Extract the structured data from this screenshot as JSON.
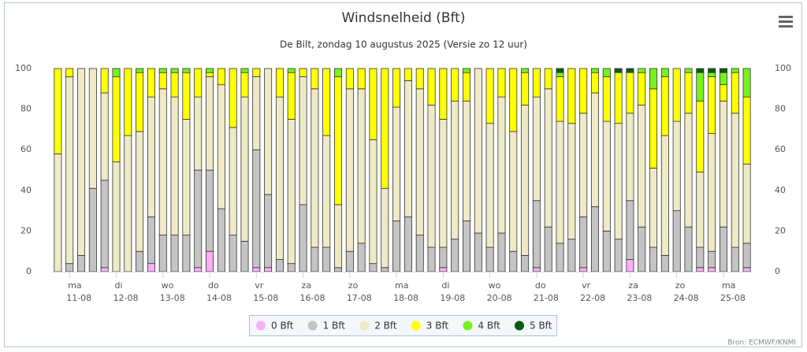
{
  "chart_data": {
    "type": "stacked_bar",
    "title": "Windsnelheid (Bft)",
    "subtitle": "De Bilt, zondag 10 augustus 2025 (Versie zo 12 uur)",
    "source": "Bron: ECMWF/KNMI",
    "categories": [
      null,
      [
        "ma",
        "11-08"
      ],
      null,
      null,
      null,
      [
        "di",
        "12-08"
      ],
      null,
      null,
      null,
      [
        "wo",
        "13-08"
      ],
      null,
      null,
      null,
      [
        "do",
        "14-08"
      ],
      null,
      null,
      null,
      [
        "vr",
        "15-08"
      ],
      null,
      null,
      null,
      [
        "za",
        "16-08"
      ],
      null,
      null,
      null,
      [
        "zo",
        "17-08"
      ],
      null,
      null,
      null,
      [
        "ma",
        "18-08"
      ],
      null,
      null,
      null,
      [
        "di",
        "19-08"
      ],
      null,
      null,
      null,
      [
        "wo",
        "20-08"
      ],
      null,
      null,
      null,
      [
        "do",
        "21-08"
      ],
      null,
      null,
      null,
      [
        "vr",
        "22-08"
      ],
      null,
      null,
      null,
      [
        "za",
        "23-08"
      ],
      null,
      null,
      null,
      [
        "zo",
        "24-08"
      ],
      null,
      null,
      null,
      [
        "ma",
        "25-08"
      ],
      null,
      null
    ],
    "series": [
      {
        "name": "0 Bft",
        "color": "#f9b0f5",
        "values": [
          0,
          0,
          0,
          0,
          2,
          0,
          0,
          0,
          4,
          0,
          0,
          0,
          2,
          10,
          0,
          0,
          0,
          2,
          2,
          0,
          0,
          0,
          0,
          0,
          0,
          0,
          0,
          0,
          0,
          0,
          0,
          0,
          0,
          2,
          0,
          0,
          0,
          0,
          0,
          0,
          0,
          2,
          0,
          0,
          0,
          2,
          0,
          0,
          0,
          6,
          0,
          0,
          0,
          0,
          0,
          2,
          2,
          0,
          0,
          2
        ]
      },
      {
        "name": "1 Bft",
        "color": "#c4c4c4",
        "values": [
          0,
          4,
          8,
          41,
          43,
          0,
          0,
          10,
          23,
          18,
          18,
          18,
          48,
          40,
          31,
          18,
          15,
          58,
          36,
          6,
          4,
          33,
          12,
          12,
          2,
          10,
          14,
          4,
          2,
          25,
          27,
          18,
          12,
          10,
          16,
          25,
          19,
          12,
          19,
          10,
          8,
          33,
          22,
          14,
          16,
          25,
          32,
          20,
          16,
          29,
          22,
          12,
          8,
          30,
          22,
          10,
          8,
          22,
          12,
          12
        ]
      },
      {
        "name": "2 Bft",
        "color": "#eeeac6",
        "values": [
          58,
          92,
          92,
          59,
          43,
          54,
          67,
          59,
          59,
          72,
          68,
          57,
          36,
          46,
          61,
          53,
          71,
          36,
          62,
          80,
          71,
          63,
          78,
          55,
          31,
          80,
          76,
          61,
          39,
          56,
          67,
          72,
          70,
          63,
          68,
          59,
          81,
          61,
          67,
          59,
          74,
          51,
          68,
          60,
          57,
          51,
          56,
          54,
          57,
          43,
          60,
          39,
          59,
          44,
          56,
          37,
          58,
          62,
          66,
          39
        ]
      },
      {
        "name": "3 Bft",
        "color": "#ffff00",
        "values": [
          42,
          4,
          0,
          0,
          12,
          42,
          33,
          29,
          14,
          8,
          12,
          23,
          14,
          2,
          8,
          29,
          12,
          4,
          0,
          14,
          23,
          4,
          10,
          33,
          63,
          10,
          10,
          35,
          59,
          19,
          6,
          10,
          18,
          25,
          16,
          14,
          0,
          27,
          14,
          31,
          16,
          14,
          10,
          22,
          27,
          22,
          10,
          22,
          25,
          20,
          16,
          39,
          29,
          26,
          20,
          35,
          28,
          8,
          20,
          33
        ]
      },
      {
        "name": "4 Bft",
        "color": "#77f21c",
        "values": [
          0,
          0,
          0,
          0,
          0,
          4,
          0,
          2,
          0,
          2,
          2,
          2,
          0,
          2,
          0,
          0,
          2,
          0,
          0,
          0,
          2,
          0,
          0,
          0,
          4,
          0,
          0,
          0,
          0,
          0,
          0,
          0,
          0,
          0,
          0,
          2,
          0,
          0,
          0,
          0,
          2,
          0,
          0,
          2,
          0,
          0,
          2,
          4,
          0,
          0,
          2,
          10,
          4,
          0,
          2,
          14,
          2,
          6,
          2,
          14
        ]
      },
      {
        "name": "5 Bft",
        "color": "#0a5c0a",
        "values": [
          0,
          0,
          0,
          0,
          0,
          0,
          0,
          0,
          0,
          0,
          0,
          0,
          0,
          0,
          0,
          0,
          0,
          0,
          0,
          0,
          0,
          0,
          0,
          0,
          0,
          0,
          0,
          0,
          0,
          0,
          0,
          0,
          0,
          0,
          0,
          0,
          0,
          0,
          0,
          0,
          0,
          0,
          0,
          2,
          0,
          0,
          0,
          0,
          2,
          2,
          0,
          0,
          0,
          0,
          0,
          2,
          2,
          2,
          0,
          0
        ]
      }
    ],
    "ylim": [
      0,
      100
    ],
    "yticks": [
      0,
      20,
      40,
      60,
      80,
      100
    ],
    "y2lim": [
      0,
      100
    ],
    "y2ticks": [
      0,
      20,
      40,
      60,
      80,
      100
    ],
    "grid": false,
    "legend": "bottom"
  }
}
